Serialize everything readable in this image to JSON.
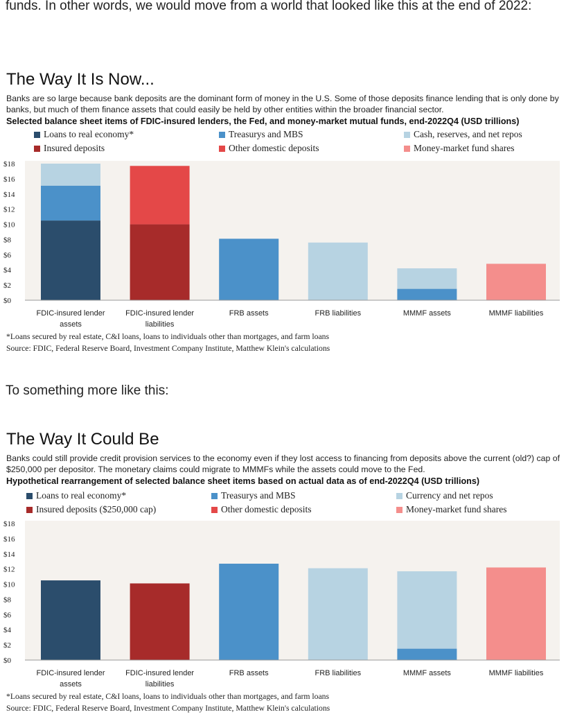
{
  "intro": "funds. In other words, we would move from a world that looked like this at the end of 2022:",
  "between": "To something more like this:",
  "colors": {
    "loans": "#2b4d6c",
    "treasurys": "#4b91c9",
    "cash": "#b7d3e2",
    "insured": "#a72b2a",
    "other_deposits": "#e44848",
    "mmf_shares": "#f48e8c",
    "plot_bg": "#f5f2ee"
  },
  "chart_data": [
    {
      "type": "bar",
      "stacked": true,
      "title": "The Way It Is Now...",
      "subtitle": "Banks are so large because bank deposits are the dominant form of money in the U.S. Some of those deposits finance lending that is only done by banks, but much of them finance assets that could easily be held by other entities within the broader financial sector.",
      "heading": "Selected balance sheet items of FDIC-insured lenders, the Fed, and money-market mutual funds, end-2022Q4 (USD trillions)",
      "categories": [
        "FDIC-insured lender assets",
        "FDIC-insured lender liabilities",
        "FRB assets",
        "FRB liabilities",
        "MMMF assets",
        "MMMF liabilities"
      ],
      "y_ticks": [
        "$0",
        "$2",
        "$4",
        "$6",
        "$8",
        "$10",
        "$12",
        "$14",
        "$16",
        "$18"
      ],
      "ylim": [
        0,
        18
      ],
      "grid": false,
      "legend_position": "top",
      "series": [
        {
          "name": "Loans to real economy*",
          "color": "#2b4d6c",
          "values": [
            10.5,
            0,
            0,
            0,
            0,
            0
          ]
        },
        {
          "name": "Treasurys and MBS",
          "color": "#4b91c9",
          "values": [
            4.6,
            0,
            8.1,
            0,
            1.5,
            0
          ]
        },
        {
          "name": "Cash, reserves, and net repos",
          "color": "#b7d3e2",
          "values": [
            2.9,
            0,
            0,
            7.6,
            2.7,
            0
          ]
        },
        {
          "name": "Insured deposits",
          "color": "#a72b2a",
          "values": [
            0,
            10.0,
            0,
            0,
            0,
            0
          ]
        },
        {
          "name": "Other domestic deposits",
          "color": "#e44848",
          "values": [
            0,
            7.7,
            0,
            0,
            0,
            0
          ]
        },
        {
          "name": "Money-market fund shares",
          "color": "#f48e8c",
          "values": [
            0,
            0,
            0,
            0,
            0,
            4.8
          ]
        }
      ],
      "footnote": "*Loans secured by real estate, C&I loans, loans to individuals other than mortgages, and farm loans",
      "source": "Source: FDIC, Federal Reserve Board, Investment Company Institute, Matthew Klein's calculations"
    },
    {
      "type": "bar",
      "stacked": true,
      "title": "The Way It Could Be",
      "subtitle": "Banks could still provide credit provision services to the economy even if they lost access to financing from deposits above the current (old?) cap of $250,000 per depositor. The monetary claims could migrate to MMMFs while the assets could move to the Fed.",
      "heading": "Hypothetical rearrangement of selected balance sheet items based on actual data as of end-2022Q4 (USD trillions)",
      "categories": [
        "FDIC-insured lender assets",
        "FDIC-insured lender liabilities",
        "FRB assets",
        "FRB liabilities",
        "MMMF assets",
        "MMMF liabilities"
      ],
      "y_ticks": [
        "$0",
        "$2",
        "$4",
        "$6",
        "$8",
        "$10",
        "$12",
        "$14",
        "$16",
        "$18"
      ],
      "ylim": [
        0,
        18
      ],
      "grid": false,
      "legend_position": "top",
      "series": [
        {
          "name": "Loans to real economy*",
          "color": "#2b4d6c",
          "values": [
            10.5,
            0,
            0,
            0,
            0,
            0
          ]
        },
        {
          "name": "Treasurys and MBS",
          "color": "#4b91c9",
          "values": [
            0,
            0,
            12.7,
            0,
            1.5,
            0
          ]
        },
        {
          "name": "Currency and net repos",
          "color": "#b7d3e2",
          "values": [
            0,
            0,
            0,
            12.1,
            10.2,
            0
          ]
        },
        {
          "name": "Insured deposits ($250,000 cap)",
          "color": "#a72b2a",
          "values": [
            0,
            10.1,
            0,
            0,
            0,
            0
          ]
        },
        {
          "name": "Other domestic deposits",
          "color": "#e44848",
          "values": [
            0,
            0,
            0,
            0,
            0,
            0
          ]
        },
        {
          "name": "Money-market fund shares",
          "color": "#f48e8c",
          "values": [
            0,
            0,
            0,
            0,
            0,
            12.2
          ]
        }
      ],
      "footnote": "*Loans secured by real estate, C&I loans, loans to individuals other than mortgages, and farm loans",
      "source": "Source: FDIC, Federal Reserve Board, Investment Company Institute, Matthew Klein's calculations"
    }
  ]
}
